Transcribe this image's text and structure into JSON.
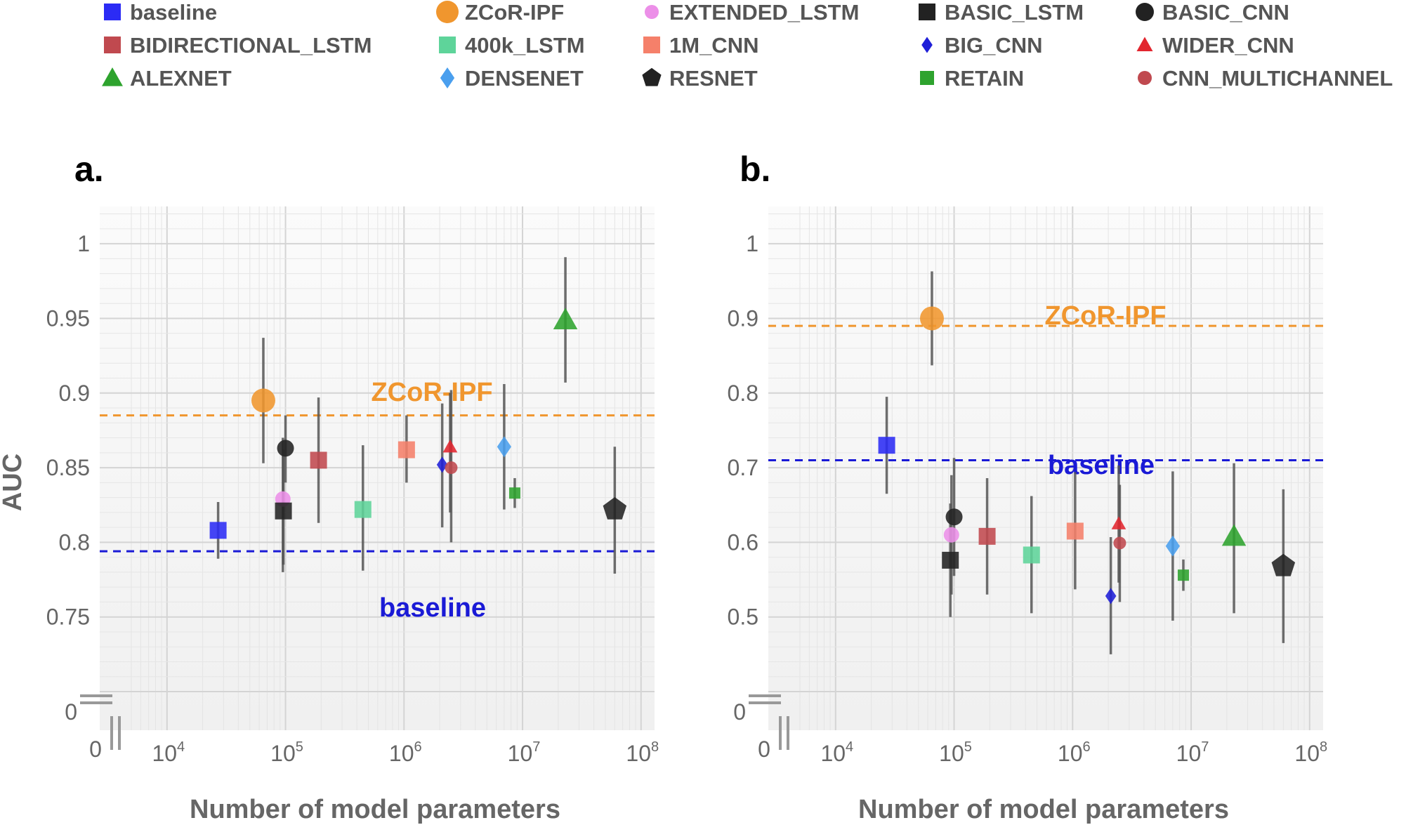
{
  "chart_data": {
    "type": "scatter",
    "legend": {
      "placement": "top",
      "entries": [
        {
          "name": "baseline",
          "marker": "square",
          "color": "#2b2bf5"
        },
        {
          "name": "ZCoR-IPF",
          "marker": "circle",
          "color": "#f0962e"
        },
        {
          "name": "EXTENDED_LSTM",
          "marker": "circle",
          "color": "#ec8fe8"
        },
        {
          "name": "BASIC_LSTM",
          "marker": "square",
          "color": "#222222"
        },
        {
          "name": "BASIC_CNN",
          "marker": "circle",
          "color": "#222222"
        },
        {
          "name": "BIDIRECTIONAL_LSTM",
          "marker": "square",
          "color": "#c0494f"
        },
        {
          "name": "400k_LSTM",
          "marker": "square",
          "color": "#5ed49a"
        },
        {
          "name": "1M_CNN",
          "marker": "square",
          "color": "#f5806a"
        },
        {
          "name": "BIG_CNN",
          "marker": "diamond",
          "color": "#1f1fd8"
        },
        {
          "name": "WIDER_CNN",
          "marker": "triangle",
          "color": "#e2262f"
        },
        {
          "name": "ALEXNET",
          "marker": "triangle",
          "color": "#2ea32e"
        },
        {
          "name": "DENSENET",
          "marker": "diamond",
          "color": "#4a9fee"
        },
        {
          "name": "RESNET",
          "marker": "pentagon",
          "color": "#222222"
        },
        {
          "name": "RETAIN",
          "marker": "square",
          "color": "#2ea32e"
        },
        {
          "name": "CNN_MULTICHANNEL",
          "marker": "circle",
          "color": "#c0494f"
        }
      ]
    },
    "panels": [
      {
        "label": "a.",
        "xlabel": "Number of model parameters",
        "ylabel": "AUC",
        "x_scale": "log",
        "xlim": [
          5000,
          130000000
        ],
        "ylim": [
          0.7,
          1.025
        ],
        "y_ticks": [
          "1",
          "0.95",
          "0.9",
          "0.85",
          "0.8",
          "0.75"
        ],
        "y_zero_label": "0",
        "x_zero_label": "0",
        "x_ticks": [
          {
            "base": "10",
            "exp": "4"
          },
          {
            "base": "10",
            "exp": "5"
          },
          {
            "base": "10",
            "exp": "6"
          },
          {
            "base": "10",
            "exp": "7"
          },
          {
            "base": "10",
            "exp": "8"
          }
        ],
        "grid": true,
        "reference_lines": [
          {
            "name": "ZCoR-IPF",
            "y": 0.885,
            "color": "#f0962e"
          },
          {
            "name": "baseline",
            "y": 0.794,
            "color": "#1a1ad6"
          }
        ],
        "points": [
          {
            "series": "baseline",
            "x": 27000,
            "y": 0.808,
            "lo": 0.789,
            "hi": 0.827
          },
          {
            "series": "ZCoR-IPF",
            "x": 65000,
            "y": 0.895,
            "lo": 0.853,
            "hi": 0.937
          },
          {
            "series": "EXTENDED_LSTM",
            "x": 95000,
            "y": 0.829,
            "lo": 0.78,
            "hi": 0.87
          },
          {
            "series": "BASIC_LSTM",
            "x": 96000,
            "y": 0.821,
            "lo": 0.785,
            "hi": 0.862
          },
          {
            "series": "BASIC_CNN",
            "x": 100000,
            "y": 0.863,
            "lo": 0.84,
            "hi": 0.885
          },
          {
            "series": "BIDIRECTIONAL_LSTM",
            "x": 190000,
            "y": 0.855,
            "lo": 0.813,
            "hi": 0.897
          },
          {
            "series": "400k_LSTM",
            "x": 450000,
            "y": 0.822,
            "lo": 0.781,
            "hi": 0.865
          },
          {
            "series": "1M_CNN",
            "x": 1050000,
            "y": 0.862,
            "lo": 0.84,
            "hi": 0.885
          },
          {
            "series": "BIG_CNN",
            "x": 2100000,
            "y": 0.852,
            "lo": 0.81,
            "hi": 0.893
          },
          {
            "series": "WIDER_CNN",
            "x": 2450000,
            "y": 0.864,
            "lo": 0.82,
            "hi": 0.9
          },
          {
            "series": "CNN_MULTICHANNEL",
            "x": 2500000,
            "y": 0.85,
            "lo": 0.8,
            "hi": 0.902
          },
          {
            "series": "DENSENET",
            "x": 7000000,
            "y": 0.864,
            "lo": 0.822,
            "hi": 0.906
          },
          {
            "series": "RETAIN",
            "x": 8600000,
            "y": 0.833,
            "lo": 0.823,
            "hi": 0.843
          },
          {
            "series": "ALEXNET",
            "x": 23000000,
            "y": 0.949,
            "lo": 0.907,
            "hi": 0.991
          },
          {
            "series": "RESNET",
            "x": 60000000,
            "y": 0.822,
            "lo": 0.779,
            "hi": 0.864
          }
        ]
      },
      {
        "label": "b.",
        "xlabel": "Number of model parameters",
        "ylabel": "",
        "x_scale": "log",
        "xlim": [
          5000,
          130000000
        ],
        "ylim": [
          0.4,
          1.05
        ],
        "y_ticks": [
          "1",
          "0.9",
          "0.8",
          "0.7",
          "0.6",
          "0.5"
        ],
        "y_zero_label": "0",
        "x_zero_label": "0",
        "x_ticks": [
          {
            "base": "10",
            "exp": "4"
          },
          {
            "base": "10",
            "exp": "5"
          },
          {
            "base": "10",
            "exp": "6"
          },
          {
            "base": "10",
            "exp": "7"
          },
          {
            "base": "10",
            "exp": "8"
          }
        ],
        "grid": true,
        "reference_lines": [
          {
            "name": "ZCoR-IPF",
            "y": 0.89,
            "color": "#f0962e"
          },
          {
            "name": "baseline",
            "y": 0.71,
            "color": "#1a1ad6"
          }
        ],
        "points": [
          {
            "series": "baseline",
            "x": 27000,
            "y": 0.73,
            "lo": 0.665,
            "hi": 0.795
          },
          {
            "series": "ZCoR-IPF",
            "x": 65000,
            "y": 0.9,
            "lo": 0.837,
            "hi": 0.963
          },
          {
            "series": "EXTENDED_LSTM",
            "x": 95000,
            "y": 0.61,
            "lo": 0.53,
            "hi": 0.69
          },
          {
            "series": "BASIC_LSTM",
            "x": 93000,
            "y": 0.576,
            "lo": 0.5,
            "hi": 0.652
          },
          {
            "series": "BASIC_CNN",
            "x": 100000,
            "y": 0.634,
            "lo": 0.555,
            "hi": 0.713
          },
          {
            "series": "BIDIRECTIONAL_LSTM",
            "x": 190000,
            "y": 0.608,
            "lo": 0.53,
            "hi": 0.686
          },
          {
            "series": "400k_LSTM",
            "x": 450000,
            "y": 0.583,
            "lo": 0.505,
            "hi": 0.662
          },
          {
            "series": "1M_CNN",
            "x": 1050000,
            "y": 0.615,
            "lo": 0.537,
            "hi": 0.694
          },
          {
            "series": "BIG_CNN",
            "x": 2100000,
            "y": 0.528,
            "lo": 0.45,
            "hi": 0.607
          },
          {
            "series": "WIDER_CNN",
            "x": 2450000,
            "y": 0.625,
            "lo": 0.546,
            "hi": 0.703
          },
          {
            "series": "CNN_MULTICHANNEL",
            "x": 2500000,
            "y": 0.599,
            "lo": 0.52,
            "hi": 0.677
          },
          {
            "series": "DENSENET",
            "x": 7000000,
            "y": 0.595,
            "lo": 0.495,
            "hi": 0.695
          },
          {
            "series": "RETAIN",
            "x": 8600000,
            "y": 0.556,
            "lo": 0.535,
            "hi": 0.577
          },
          {
            "series": "ALEXNET",
            "x": 23000000,
            "y": 0.608,
            "lo": 0.505,
            "hi": 0.706
          },
          {
            "series": "RESNET",
            "x": 60000000,
            "y": 0.568,
            "lo": 0.465,
            "hi": 0.671
          }
        ]
      }
    ]
  }
}
